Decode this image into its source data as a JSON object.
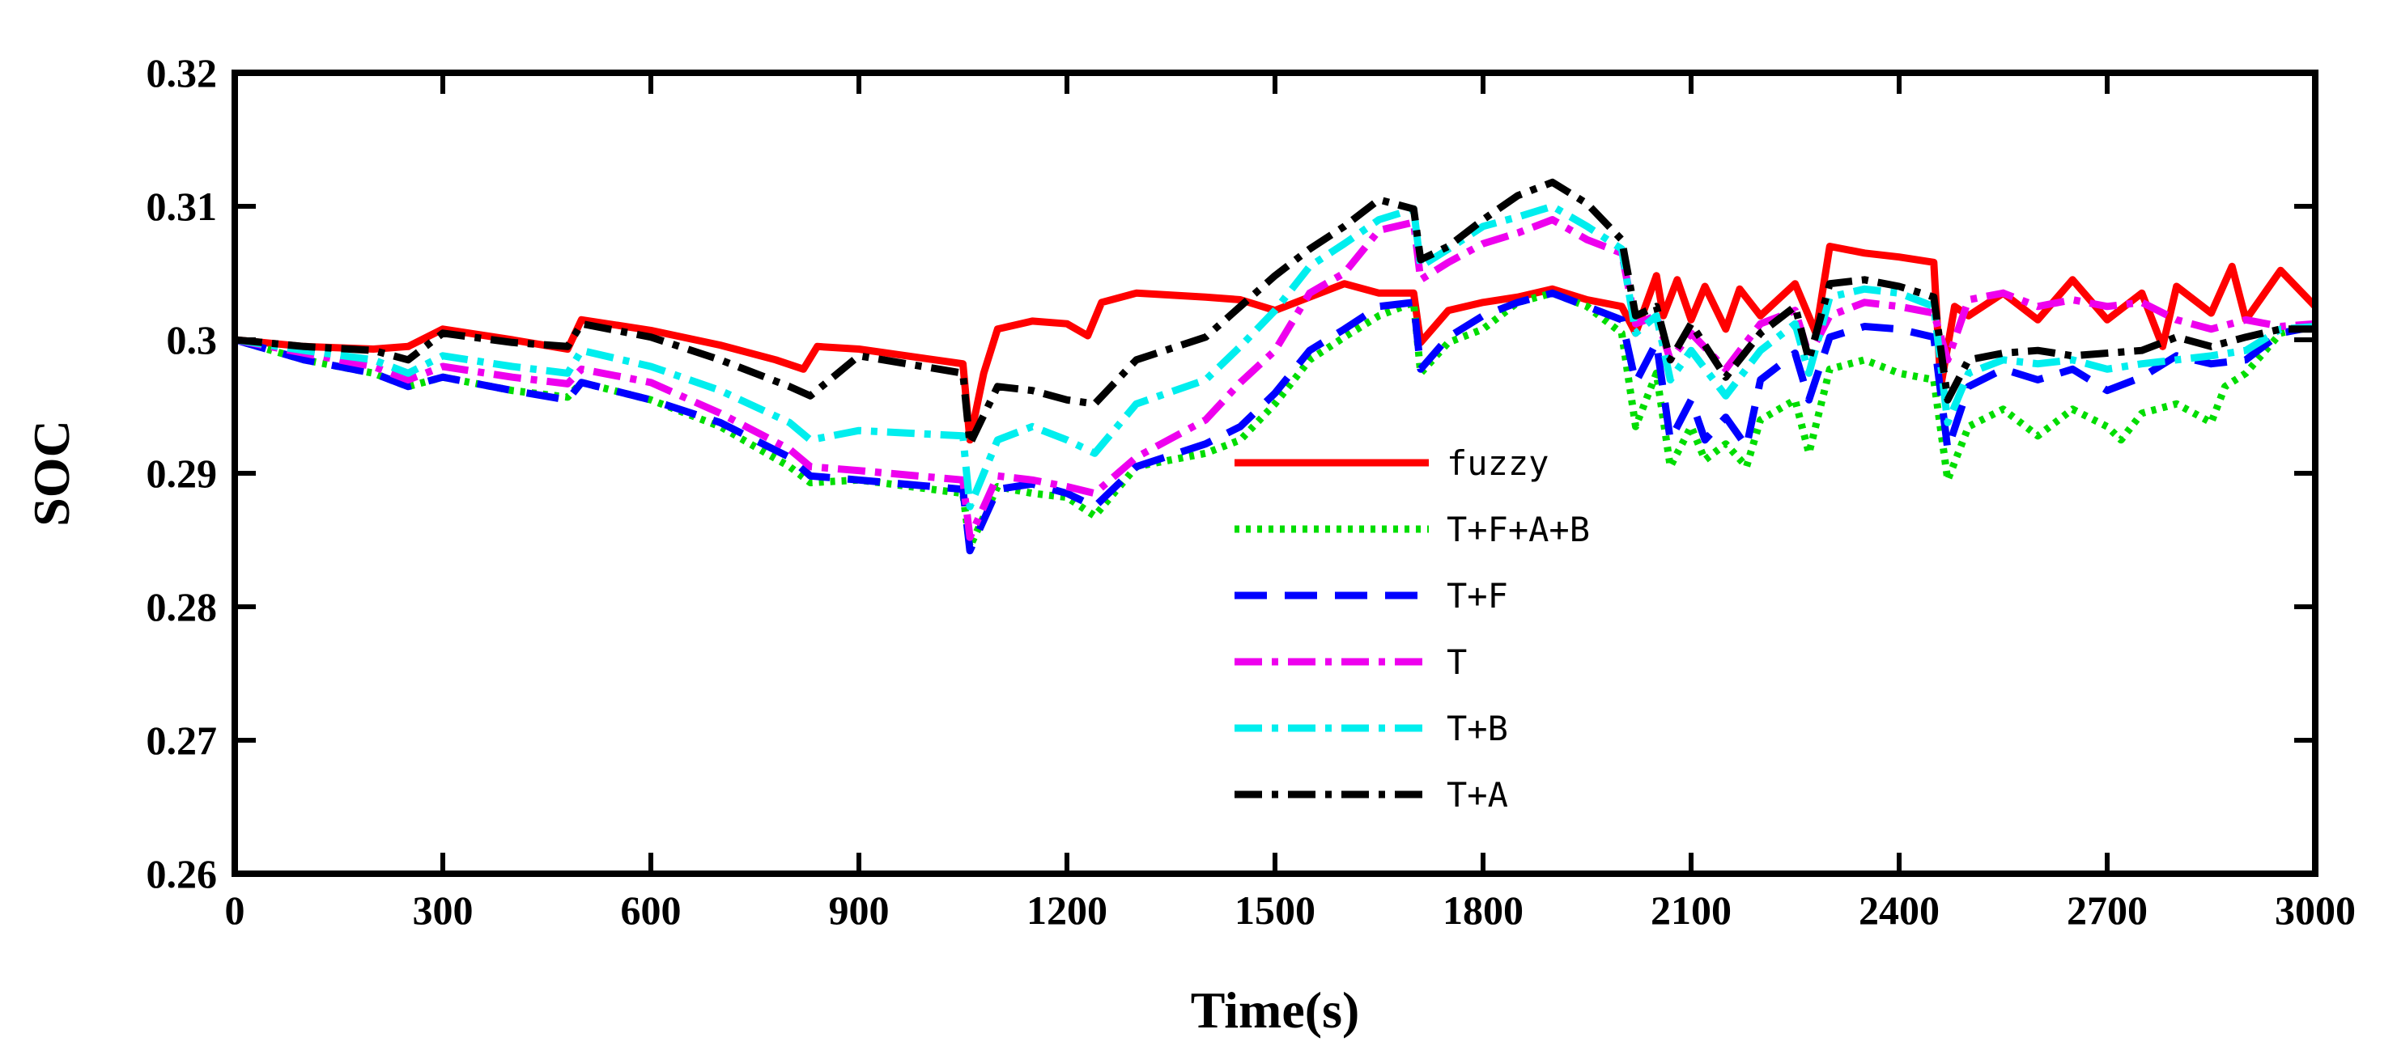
{
  "chart_data": {
    "type": "line",
    "title": "",
    "xlabel": "Time(s)",
    "ylabel": "SOC",
    "xlim": [
      0,
      3000
    ],
    "ylim": [
      0.26,
      0.32
    ],
    "xticks": [
      0,
      300,
      600,
      900,
      1200,
      1500,
      1800,
      2100,
      2400,
      2700,
      3000
    ],
    "xtick_labels": [
      "0",
      "300",
      "600",
      "900",
      "1200",
      "1500",
      "1800",
      "2100",
      "2400",
      "2700",
      "3000"
    ],
    "yticks": [
      0.26,
      0.27,
      0.28,
      0.29,
      0.3,
      0.31,
      0.32
    ],
    "ytick_labels": [
      "0.26",
      "0.27",
      "0.28",
      "0.29",
      "0.3",
      "0.31",
      "0.32"
    ],
    "grid": false,
    "legend_position": "center",
    "series": [
      {
        "name": "fuzzy",
        "color": "#ff0000",
        "style": "solid",
        "x": [
          0,
          100,
          200,
          250,
          300,
          400,
          480,
          500,
          600,
          700,
          780,
          820,
          840,
          900,
          1050,
          1060,
          1080,
          1100,
          1150,
          1200,
          1230,
          1250,
          1300,
          1400,
          1450,
          1500,
          1550,
          1600,
          1650,
          1700,
          1710,
          1750,
          1800,
          1850,
          1900,
          1950,
          2000,
          2020,
          2050,
          2060,
          2080,
          2100,
          2120,
          2150,
          2170,
          2200,
          2250,
          2280,
          2300,
          2350,
          2400,
          2450,
          2460,
          2480,
          2500,
          2550,
          2600,
          2650,
          2700,
          2750,
          2780,
          2800,
          2850,
          2880,
          2900,
          2950,
          3000
        ],
        "y": [
          0.3,
          0.2995,
          0.2993,
          0.2995,
          0.3008,
          0.3,
          0.2993,
          0.3015,
          0.3007,
          0.2996,
          0.2985,
          0.2978,
          0.2995,
          0.2993,
          0.2982,
          0.2925,
          0.2975,
          0.3008,
          0.3014,
          0.3012,
          0.3003,
          0.3028,
          0.3035,
          0.3032,
          0.303,
          0.3022,
          0.3032,
          0.3042,
          0.3035,
          0.3035,
          0.2998,
          0.3022,
          0.3028,
          0.3032,
          0.3038,
          0.303,
          0.3025,
          0.3005,
          0.3048,
          0.3018,
          0.3045,
          0.3015,
          0.304,
          0.3008,
          0.3038,
          0.3018,
          0.3042,
          0.3005,
          0.307,
          0.3065,
          0.3062,
          0.3058,
          0.2965,
          0.3025,
          0.3018,
          0.3035,
          0.3015,
          0.3045,
          0.3015,
          0.3035,
          0.2995,
          0.304,
          0.302,
          0.3055,
          0.3015,
          0.3052,
          0.3025
        ]
      },
      {
        "name": "T+F+A+B",
        "color": "#00dd00",
        "style": "dotted",
        "x": [
          0,
          100,
          200,
          250,
          300,
          400,
          480,
          500,
          600,
          700,
          800,
          830,
          900,
          1050,
          1060,
          1100,
          1150,
          1200,
          1240,
          1300,
          1400,
          1450,
          1500,
          1550,
          1600,
          1650,
          1700,
          1710,
          1750,
          1800,
          1850,
          1900,
          1950,
          2000,
          2020,
          2050,
          2070,
          2100,
          2120,
          2150,
          2180,
          2200,
          2250,
          2270,
          2300,
          2350,
          2400,
          2450,
          2470,
          2500,
          2550,
          2600,
          2650,
          2700,
          2720,
          2750,
          2800,
          2850,
          2870,
          2900,
          2950,
          3000
        ],
        "y": [
          0.3,
          0.2985,
          0.2975,
          0.2965,
          0.2972,
          0.2962,
          0.2957,
          0.2968,
          0.2955,
          0.2935,
          0.2905,
          0.2893,
          0.2895,
          0.2885,
          0.2845,
          0.289,
          0.2885,
          0.2882,
          0.2868,
          0.2905,
          0.2915,
          0.2925,
          0.2952,
          0.2985,
          0.3002,
          0.3018,
          0.3028,
          0.2975,
          0.2998,
          0.3008,
          0.3028,
          0.3035,
          0.3025,
          0.3005,
          0.2935,
          0.2975,
          0.2905,
          0.2935,
          0.291,
          0.2922,
          0.2905,
          0.294,
          0.2955,
          0.2915,
          0.2978,
          0.2985,
          0.2975,
          0.297,
          0.2895,
          0.2935,
          0.2948,
          0.2928,
          0.2948,
          0.2935,
          0.2925,
          0.2945,
          0.2952,
          0.2938,
          0.2965,
          0.2975,
          0.3005,
          0.3012
        ]
      },
      {
        "name": "T+F",
        "color": "#0000ff",
        "style": "dashed",
        "x": [
          0,
          100,
          200,
          250,
          300,
          400,
          480,
          500,
          600,
          700,
          800,
          830,
          900,
          1050,
          1060,
          1100,
          1150,
          1200,
          1240,
          1300,
          1400,
          1450,
          1500,
          1550,
          1600,
          1650,
          1700,
          1710,
          1750,
          1800,
          1850,
          1900,
          1950,
          2000,
          2020,
          2050,
          2070,
          2100,
          2120,
          2150,
          2180,
          2200,
          2250,
          2270,
          2300,
          2350,
          2400,
          2450,
          2470,
          2500,
          2550,
          2600,
          2650,
          2700,
          2750,
          2800,
          2850,
          2900,
          2950,
          3000
        ],
        "y": [
          0.3,
          0.2985,
          0.2975,
          0.2965,
          0.2972,
          0.2962,
          0.2955,
          0.2968,
          0.2955,
          0.2938,
          0.2912,
          0.2898,
          0.2895,
          0.2888,
          0.2842,
          0.2888,
          0.2892,
          0.2885,
          0.2875,
          0.2905,
          0.2922,
          0.2935,
          0.296,
          0.2992,
          0.3008,
          0.3025,
          0.3028,
          0.2978,
          0.3002,
          0.3018,
          0.3028,
          0.3035,
          0.3025,
          0.3015,
          0.2968,
          0.2998,
          0.2925,
          0.2955,
          0.2925,
          0.2942,
          0.292,
          0.297,
          0.299,
          0.2955,
          0.3002,
          0.301,
          0.3008,
          0.3002,
          0.2918,
          0.2965,
          0.2978,
          0.297,
          0.2978,
          0.2962,
          0.2972,
          0.2988,
          0.2982,
          0.2985,
          0.3005,
          0.301
        ]
      },
      {
        "name": "T",
        "color": "#ee00ee",
        "style": "dashdot",
        "x": [
          0,
          100,
          200,
          250,
          300,
          400,
          480,
          500,
          600,
          700,
          800,
          830,
          900,
          1050,
          1060,
          1100,
          1150,
          1200,
          1240,
          1300,
          1400,
          1450,
          1500,
          1550,
          1600,
          1650,
          1700,
          1710,
          1750,
          1800,
          1850,
          1900,
          1950,
          2000,
          2020,
          2050,
          2070,
          2100,
          2150,
          2200,
          2250,
          2270,
          2300,
          2350,
          2400,
          2450,
          2470,
          2500,
          2550,
          2600,
          2650,
          2700,
          2750,
          2800,
          2850,
          2900,
          2950,
          3000
        ],
        "y": [
          0.3,
          0.299,
          0.298,
          0.297,
          0.298,
          0.2972,
          0.2967,
          0.2978,
          0.2968,
          0.2945,
          0.2918,
          0.2905,
          0.2902,
          0.2895,
          0.2852,
          0.2898,
          0.2895,
          0.289,
          0.2885,
          0.2912,
          0.294,
          0.2968,
          0.2992,
          0.3035,
          0.305,
          0.3082,
          0.3088,
          0.3045,
          0.3058,
          0.3072,
          0.308,
          0.309,
          0.3075,
          0.3065,
          0.3012,
          0.3018,
          0.2985,
          0.3005,
          0.2978,
          0.3012,
          0.3022,
          0.2988,
          0.3018,
          0.3028,
          0.3025,
          0.302,
          0.2985,
          0.303,
          0.3035,
          0.3025,
          0.303,
          0.3025,
          0.3028,
          0.3015,
          0.3008,
          0.3015,
          0.301,
          0.3012
        ]
      },
      {
        "name": "T+B",
        "color": "#00eeee",
        "style": "dashdot",
        "x": [
          0,
          100,
          200,
          250,
          300,
          400,
          480,
          500,
          600,
          700,
          800,
          830,
          900,
          1050,
          1060,
          1100,
          1150,
          1200,
          1240,
          1300,
          1400,
          1450,
          1500,
          1550,
          1600,
          1650,
          1700,
          1710,
          1750,
          1800,
          1850,
          1900,
          1950,
          2000,
          2020,
          2050,
          2070,
          2100,
          2150,
          2200,
          2250,
          2270,
          2300,
          2350,
          2400,
          2450,
          2470,
          2500,
          2550,
          2600,
          2650,
          2700,
          2750,
          2800,
          2850,
          2900,
          2950,
          3000
        ],
        "y": [
          0.3,
          0.2992,
          0.2985,
          0.2975,
          0.2988,
          0.298,
          0.2975,
          0.2992,
          0.298,
          0.2962,
          0.2938,
          0.2925,
          0.2932,
          0.2928,
          0.2875,
          0.2925,
          0.2935,
          0.2925,
          0.2915,
          0.2952,
          0.297,
          0.2995,
          0.3022,
          0.3055,
          0.3072,
          0.309,
          0.3098,
          0.3055,
          0.3068,
          0.3085,
          0.3092,
          0.31,
          0.3085,
          0.3068,
          0.3005,
          0.3018,
          0.297,
          0.2992,
          0.2958,
          0.2992,
          0.3012,
          0.2975,
          0.3032,
          0.3038,
          0.3035,
          0.3025,
          0.2938,
          0.2975,
          0.2985,
          0.2982,
          0.2985,
          0.2978,
          0.2982,
          0.2985,
          0.2988,
          0.2992,
          0.3008,
          0.301
        ]
      },
      {
        "name": "T+A",
        "color": "#000000",
        "style": "dashdot",
        "x": [
          0,
          100,
          200,
          250,
          300,
          400,
          480,
          500,
          600,
          700,
          800,
          830,
          900,
          1050,
          1060,
          1100,
          1150,
          1200,
          1240,
          1300,
          1400,
          1450,
          1500,
          1550,
          1600,
          1650,
          1700,
          1710,
          1750,
          1800,
          1850,
          1900,
          1950,
          2000,
          2020,
          2050,
          2070,
          2100,
          2150,
          2200,
          2250,
          2270,
          2300,
          2350,
          2400,
          2450,
          2470,
          2500,
          2550,
          2600,
          2650,
          2700,
          2750,
          2800,
          2850,
          2900,
          2950,
          3000
        ],
        "y": [
          0.3,
          0.2995,
          0.2992,
          0.2985,
          0.3005,
          0.2998,
          0.2995,
          0.3012,
          0.3002,
          0.2985,
          0.2965,
          0.2958,
          0.2988,
          0.2975,
          0.2922,
          0.2965,
          0.2962,
          0.2955,
          0.2952,
          0.2985,
          0.3002,
          0.3025,
          0.3048,
          0.3068,
          0.3085,
          0.3105,
          0.3098,
          0.306,
          0.307,
          0.309,
          0.3108,
          0.3118,
          0.3102,
          0.3075,
          0.3018,
          0.3025,
          0.2985,
          0.3012,
          0.2972,
          0.3005,
          0.3025,
          0.2985,
          0.3042,
          0.3045,
          0.304,
          0.3032,
          0.2955,
          0.2985,
          0.299,
          0.2992,
          0.2988,
          0.299,
          0.2992,
          0.3002,
          0.2995,
          0.3002,
          0.3008,
          0.3008
        ]
      }
    ]
  }
}
